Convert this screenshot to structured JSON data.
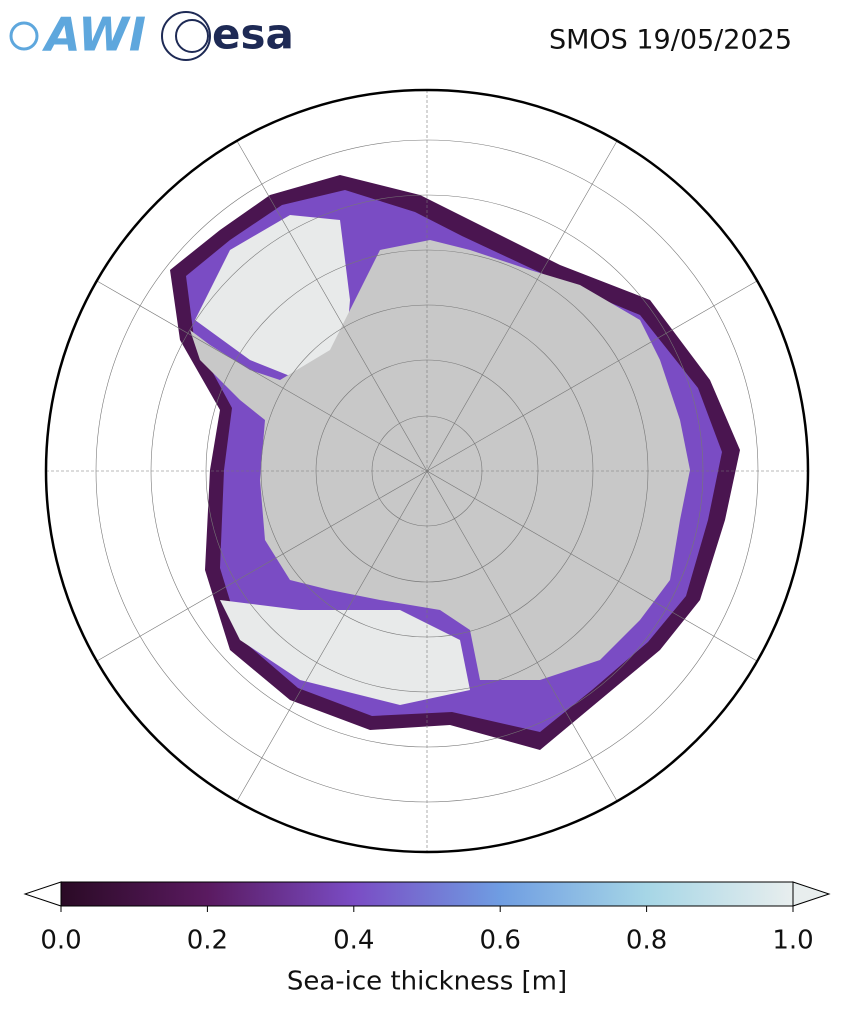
{
  "logos": {
    "awi": "AWI",
    "esa": "esa"
  },
  "title": "SMOS 19/05/2025",
  "colorbar": {
    "label": "Sea-ice thickness [m]",
    "range": [
      0,
      1
    ],
    "ticks": [
      {
        "value": 0,
        "label": "0.0"
      },
      {
        "value": 0.2,
        "label": "0.2"
      },
      {
        "value": 0.4,
        "label": "0.4"
      },
      {
        "value": 0.6,
        "label": "0.6"
      },
      {
        "value": 0.8,
        "label": "0.8"
      },
      {
        "value": 1,
        "label": "1.0"
      }
    ],
    "colors": [
      "#2a0a25",
      "#5a1a60",
      "#7a4cc4",
      "#6f9de2",
      "#a6d6e6",
      "#e8eeee"
    ]
  }
}
